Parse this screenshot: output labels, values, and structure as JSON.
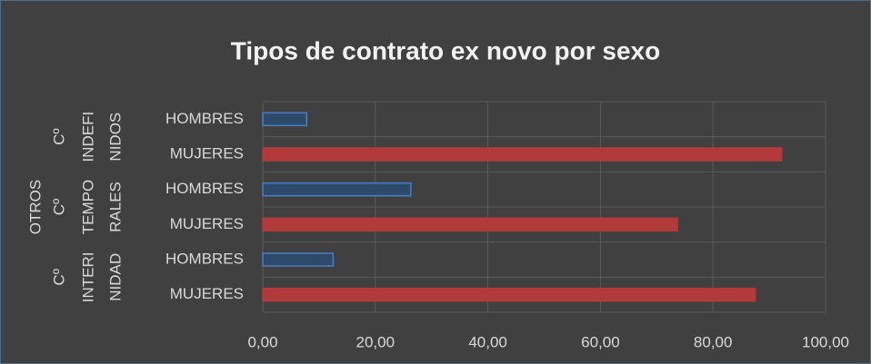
{
  "chart_data": {
    "type": "bar",
    "title": "Tipos de contrato ex novo por sexo",
    "outer_group": "OTROS",
    "groups": [
      {
        "lines": [
          "Cº",
          "INDEFI",
          "NIDOS"
        ]
      },
      {
        "lines": [
          "Cº",
          "TEMPO",
          "RALES"
        ]
      },
      {
        "lines": [
          "Cº",
          "INTERI",
          "NIDAD"
        ]
      }
    ],
    "categories": [
      "HOMBRES",
      "MUJERES",
      "HOMBRES",
      "MUJERES",
      "HOMBRES",
      "MUJERES"
    ],
    "values": [
      7.8,
      92.2,
      26.3,
      73.7,
      12.5,
      87.5
    ],
    "colors": [
      "#4a7ec2",
      "#b23a3a",
      "#4a7ec2",
      "#b23a3a",
      "#4a7ec2",
      "#b23a3a"
    ],
    "xlim": [
      0,
      100
    ],
    "xticks": [
      {
        "value": 0,
        "label": "0,00"
      },
      {
        "value": 20,
        "label": "20,00"
      },
      {
        "value": 40,
        "label": "40,00"
      },
      {
        "value": 60,
        "label": "60,00"
      },
      {
        "value": 80,
        "label": "80,00"
      },
      {
        "value": 100,
        "label": "100,00"
      }
    ],
    "grid": true
  }
}
